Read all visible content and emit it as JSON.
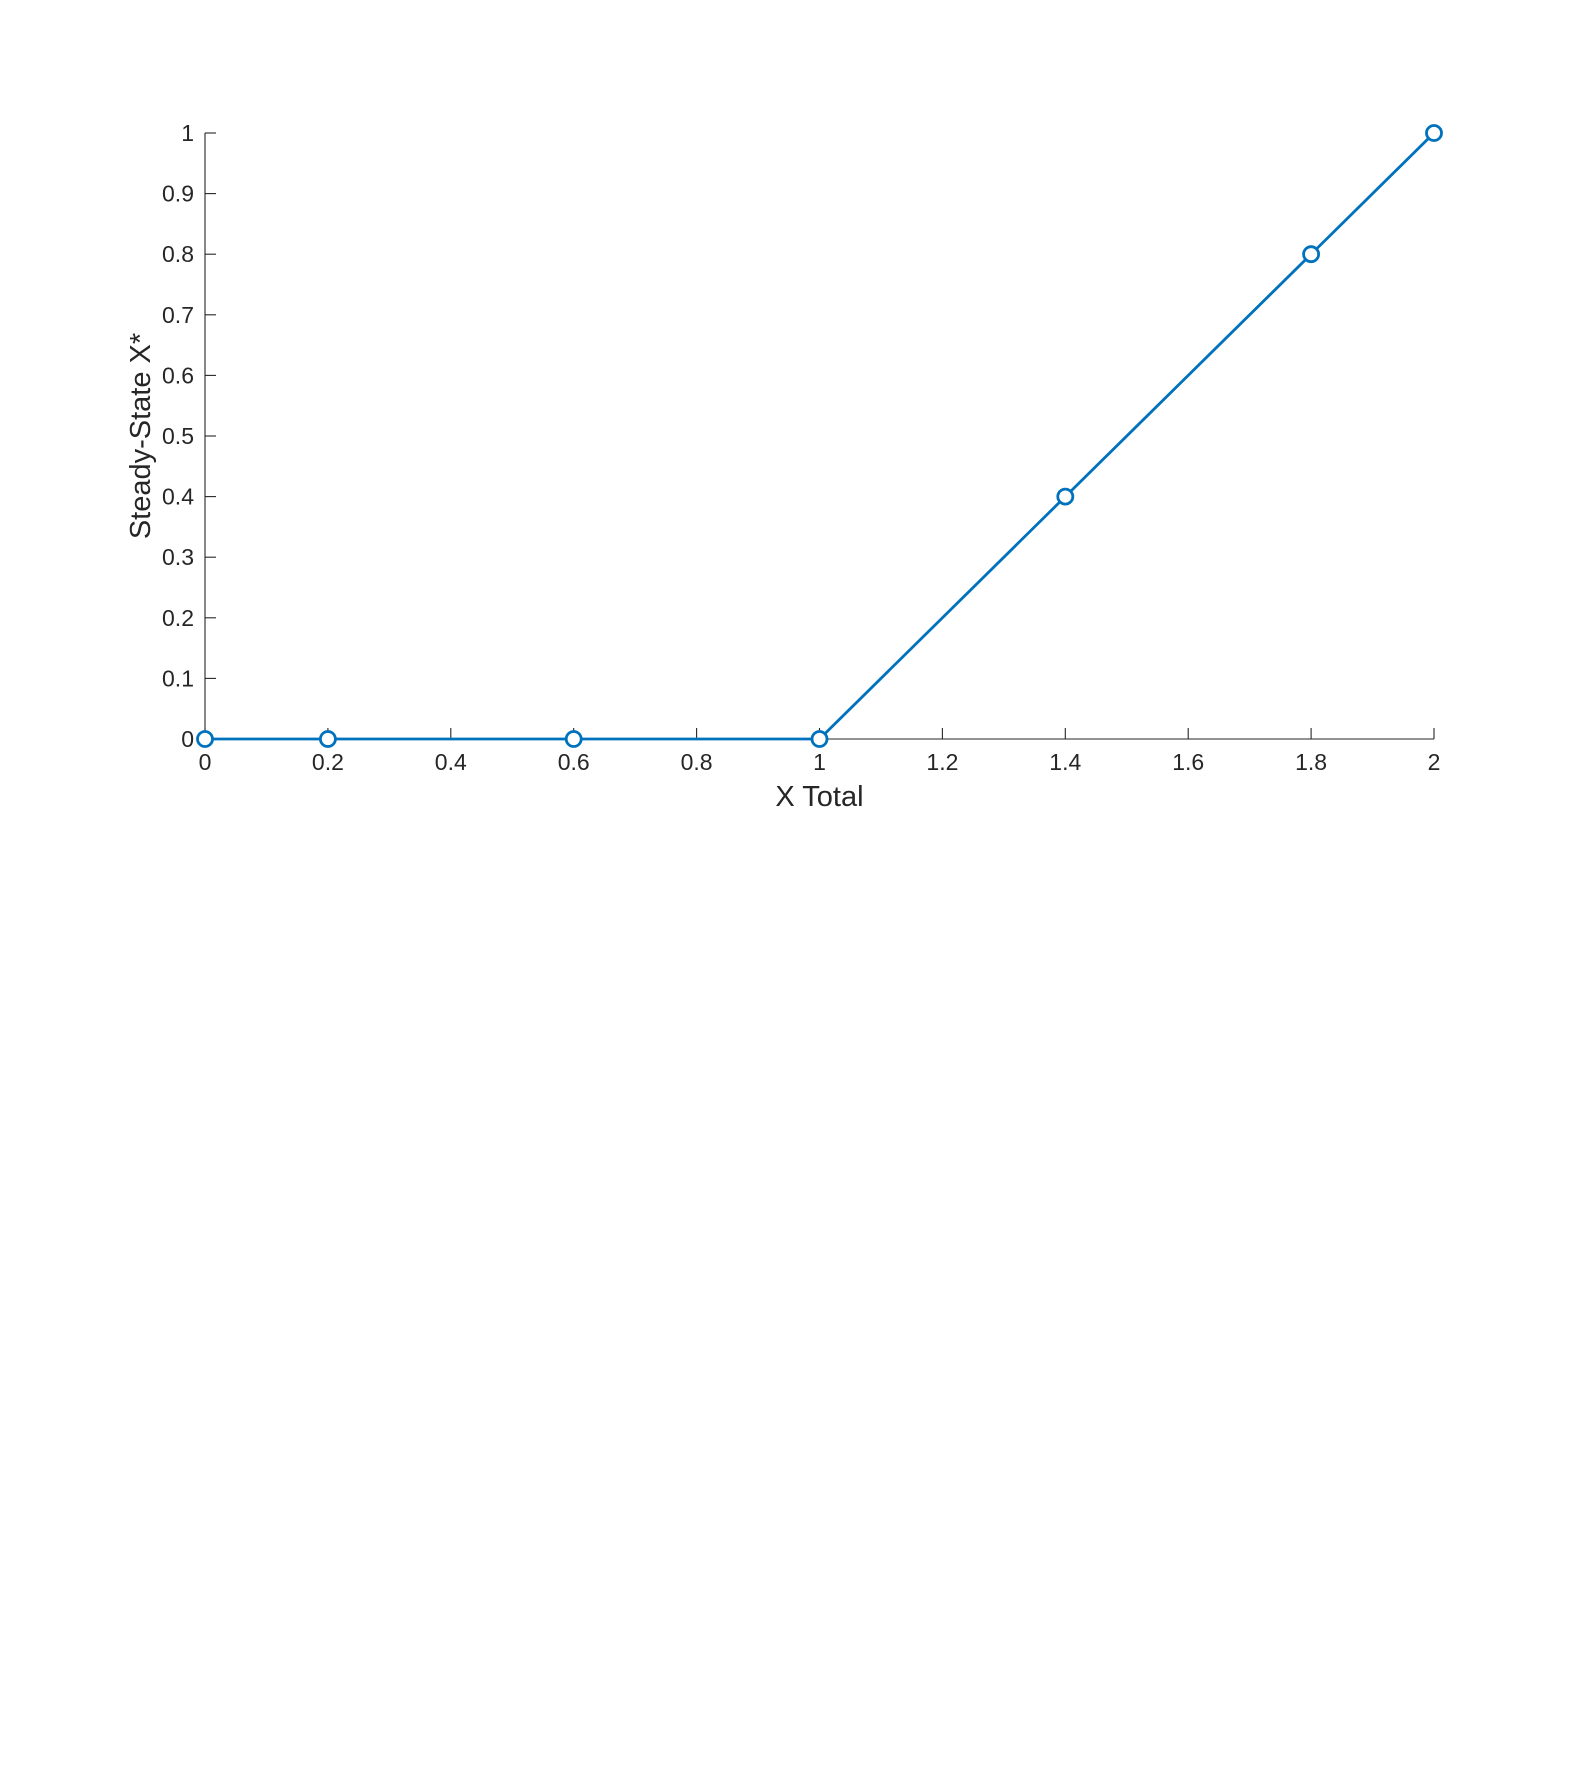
{
  "chart_data": {
    "type": "line",
    "title": "",
    "xlabel": "X Total",
    "ylabel": "Steady-State X*",
    "xlim": [
      0,
      2
    ],
    "ylim": [
      0,
      1
    ],
    "x_ticks": [
      "0",
      "0.2",
      "0.4",
      "0.6",
      "0.8",
      "1",
      "1.2",
      "1.4",
      "1.6",
      "1.8",
      "2"
    ],
    "y_ticks": [
      "0",
      "0.1",
      "0.2",
      "0.3",
      "0.4",
      "0.5",
      "0.6",
      "0.7",
      "0.8",
      "0.9",
      "1"
    ],
    "grid": false,
    "legend": "none",
    "marker": "open-circle",
    "series": [
      {
        "color": "#0072BD",
        "x": [
          0,
          0.2,
          0.6,
          1.0,
          1.4,
          1.8,
          2.0
        ],
        "y": [
          0,
          0,
          0,
          0,
          0.4,
          0.8,
          1.0
        ]
      }
    ]
  }
}
